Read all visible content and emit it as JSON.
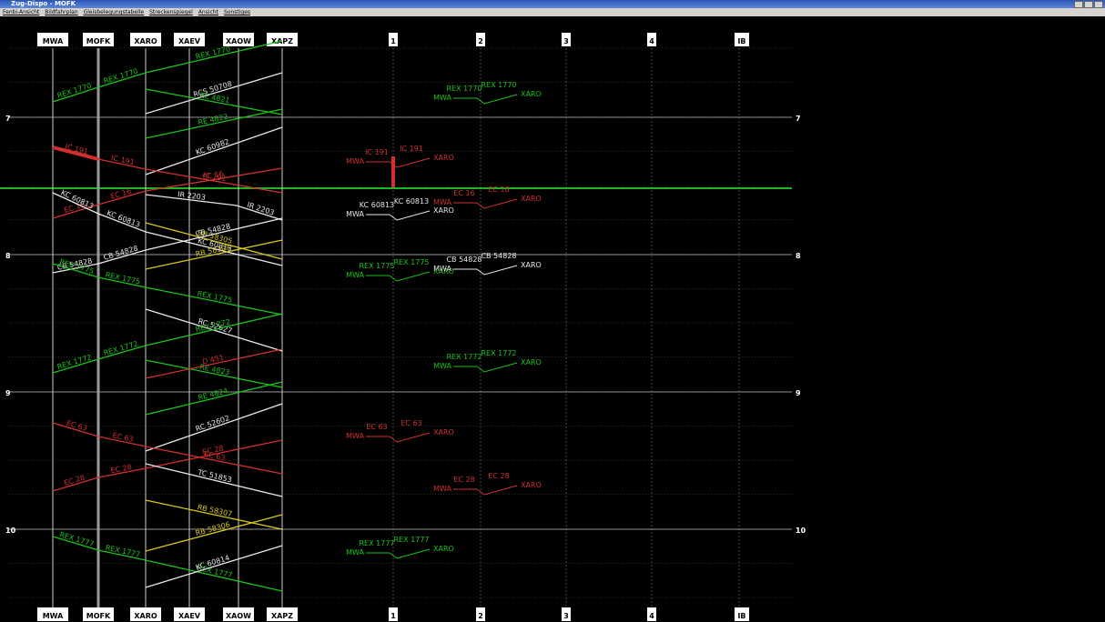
{
  "window": {
    "title": "Zug-Dispo - MOFK"
  },
  "menu": [
    "Fenbi-Ansicht",
    "Bildfahrplan",
    "Gleisbelegungstabelle",
    "Streckenspiegel",
    "Ansicht",
    "Sonstiges"
  ],
  "stations": [
    "MWA",
    "MOFK",
    "XARO",
    "XAEV",
    "XAOW",
    "XAPZ"
  ],
  "tracks": [
    "1",
    "2",
    "3",
    "4",
    "IB"
  ],
  "hours": [
    "7",
    "8",
    "9",
    "10"
  ],
  "trains": [
    {
      "label": "REX 1770",
      "color": "#19c419"
    },
    {
      "label": "RE 4821",
      "color": "#19c419"
    },
    {
      "label": "RCS 50708",
      "color": "#e8e8e8"
    },
    {
      "label": "RE 4822",
      "color": "#19c419"
    },
    {
      "label": "KC 60982",
      "color": "#e8e8e8"
    },
    {
      "label": "IC 191",
      "color": "#d23030"
    },
    {
      "label": "EC 16",
      "color": "#d23030"
    },
    {
      "label": "KC 60813",
      "color": "#e8e8e8"
    },
    {
      "label": "IR 2203",
      "color": "#e8e8e8"
    },
    {
      "label": "RB 58305",
      "color": "#d8c81c"
    },
    {
      "label": "CB 54828",
      "color": "#e8e8e8"
    },
    {
      "label": "RB 58304",
      "color": "#d8c81c"
    },
    {
      "label": "REX 1775",
      "color": "#19c419"
    },
    {
      "label": "RC 52627",
      "color": "#e8e8e8"
    },
    {
      "label": "REX 1772",
      "color": "#19c419"
    },
    {
      "label": "RE 4823",
      "color": "#19c419"
    },
    {
      "label": "D 451",
      "color": "#d23030"
    },
    {
      "label": "RE 4824",
      "color": "#19c419"
    },
    {
      "label": "RC 52602",
      "color": "#e8e8e8"
    },
    {
      "label": "EC 63",
      "color": "#d23030"
    },
    {
      "label": "EC 28",
      "color": "#d23030"
    },
    {
      "label": "TC 51853",
      "color": "#e8e8e8"
    },
    {
      "label": "RB 58307",
      "color": "#d8c81c"
    },
    {
      "label": "RB 58306",
      "color": "#d8c81c"
    },
    {
      "label": "REX 1777",
      "color": "#19c419"
    },
    {
      "label": "KC 60814",
      "color": "#e8e8e8"
    }
  ],
  "platform_entries": [
    {
      "from": "MWA",
      "train": "REX 1770",
      "to": "XARO",
      "color": "#19c419"
    },
    {
      "from": "MWA",
      "train": "IC 191",
      "to": "XARO",
      "color": "#d23030"
    },
    {
      "from": "MWA",
      "train": "KC 60813",
      "to": "XARO",
      "color": "#e8e8e8"
    },
    {
      "from": "MWA",
      "train": "EC 16",
      "to": "XARO",
      "color": "#d23030"
    },
    {
      "from": "MWA",
      "train": "REX 1775",
      "to": "XARO",
      "color": "#19c419"
    },
    {
      "from": "MWA",
      "train": "CB 54828",
      "to": "XARO",
      "color": "#e8e8e8"
    },
    {
      "from": "MWA",
      "train": "REX 1772",
      "to": "XARO",
      "color": "#19c419"
    },
    {
      "from": "MWA",
      "train": "EC 63",
      "to": "XARO",
      "color": "#d23030"
    },
    {
      "from": "MWA",
      "train": "EC 28",
      "to": "XARO",
      "color": "#d23030"
    },
    {
      "from": "MWA",
      "train": "REX 1777",
      "to": "XARO",
      "color": "#19c419"
    }
  ]
}
